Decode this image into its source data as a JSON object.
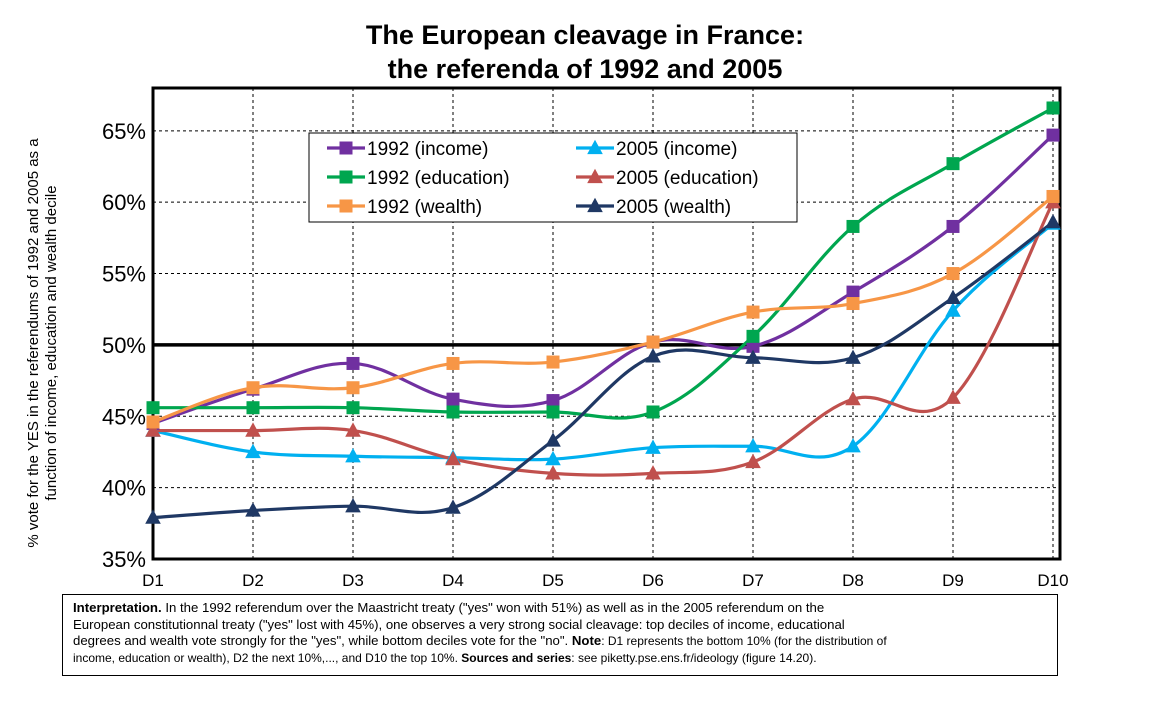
{
  "title_line1": "The European cleavage in France:",
  "title_line2": "the referenda of 1992 and 2005",
  "note": {
    "interp_label": "Interpretation.",
    "interp_text1": " In the 1992 referendum over the Maastricht treaty (\"yes\" won with 51%) as well as in the 2005 referendum on the",
    "line2": "European constitutionnal treaty (\"yes\" lost with 45%), one observes a very strong social cleavage: top deciles of income, educational",
    "line3a": "degrees and wealth vote strongly for the \"yes\", while bottom deciles vote for the \"no\". ",
    "note_label": "Note",
    "line3b": ": D1 represents the bottom 10% (for the distribution of",
    "line4a": "income, education or wealth), D2 the next 10%,..., and D10 the top 10%.   ",
    "sources_label": "Sources and series",
    "line4b": ": see piketty.pse.ens.fr/ideology (figure 14.20)."
  },
  "chart_data": {
    "type": "line",
    "title": "The European cleavage in France: the referenda of 1992 and 2005",
    "xlabel": "",
    "ylabel": "% vote for the YES in the referendums of 1992 and 2005 as a function of income, education and wealth decile",
    "categories": [
      "D1",
      "D2",
      "D3",
      "D4",
      "D5",
      "D6",
      "D7",
      "D8",
      "D9",
      "D10"
    ],
    "ylim": [
      35,
      68
    ],
    "yticks": [
      35,
      40,
      45,
      50,
      55,
      60,
      65
    ],
    "ytick_labels": [
      "35%",
      "40%",
      "45%",
      "50%",
      "55%",
      "60%",
      "65%"
    ],
    "reference_line": 50,
    "grid": true,
    "legend_position": "top-center",
    "series": [
      {
        "name": "1992 (income)",
        "color": "#7030A0",
        "marker": "square",
        "values": [
          44.5,
          46.9,
          48.7,
          46.2,
          46.1,
          50.2,
          49.9,
          53.7,
          58.3,
          64.7
        ]
      },
      {
        "name": "2005 (income)",
        "color": "#00B0F0",
        "marker": "triangle",
        "values": [
          44.0,
          42.5,
          42.2,
          42.1,
          42.0,
          42.8,
          42.9,
          42.9,
          52.4,
          58.5
        ]
      },
      {
        "name": "1992 (education)",
        "color": "#00A64F",
        "marker": "square",
        "values": [
          45.6,
          45.6,
          45.6,
          45.3,
          45.3,
          45.3,
          50.6,
          58.3,
          62.7,
          66.6
        ]
      },
      {
        "name": "2005 (education)",
        "color": "#C0504D",
        "marker": "triangle",
        "values": [
          44.0,
          44.0,
          44.0,
          42.0,
          41.0,
          41.0,
          41.8,
          46.2,
          46.3,
          60.0
        ]
      },
      {
        "name": "1992 (wealth)",
        "color": "#F79646",
        "marker": "square",
        "values": [
          44.6,
          47.0,
          47.0,
          48.7,
          48.8,
          50.2,
          52.3,
          52.9,
          55.0,
          60.4
        ]
      },
      {
        "name": "2005 (wealth)",
        "color": "#1F3864",
        "marker": "triangle",
        "values": [
          37.9,
          38.4,
          38.7,
          38.6,
          43.3,
          49.2,
          49.1,
          49.1,
          53.3,
          58.6
        ]
      }
    ]
  }
}
